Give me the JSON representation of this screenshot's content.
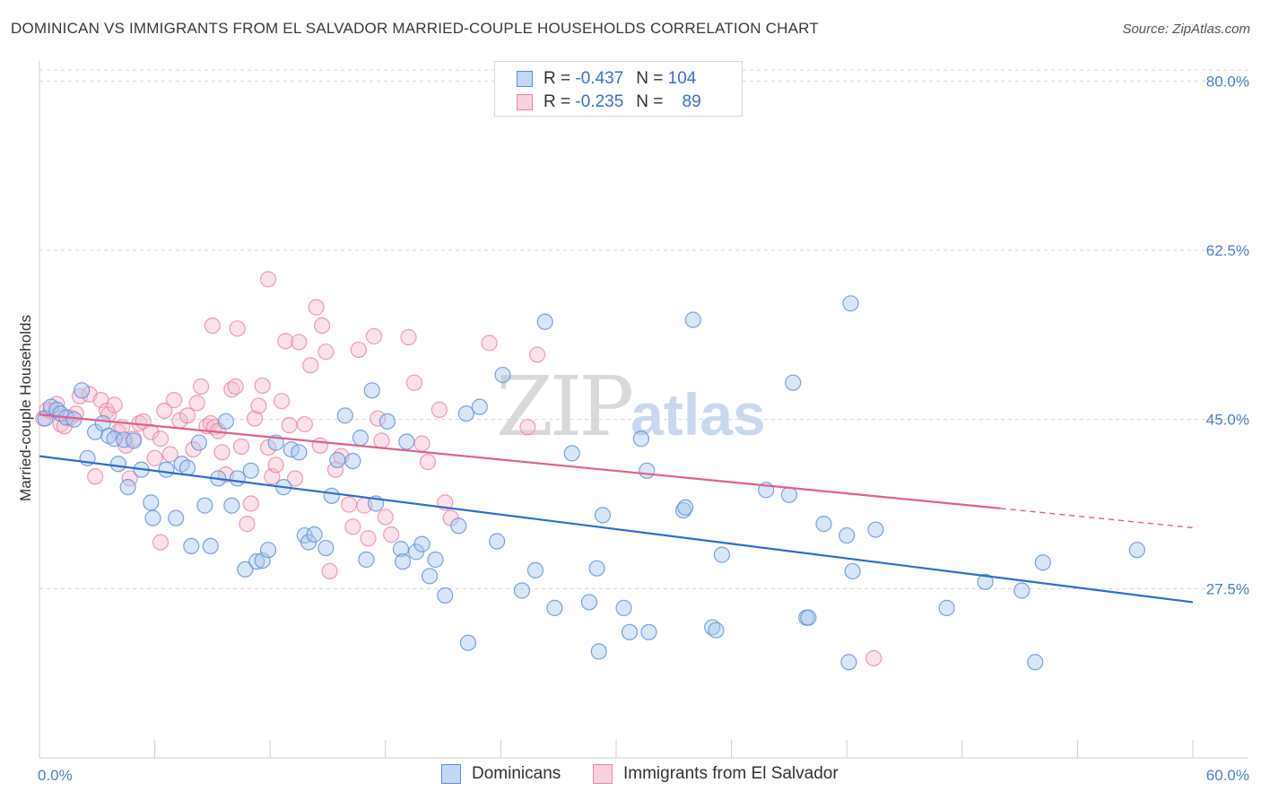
{
  "title": "DOMINICAN VS IMMIGRANTS FROM EL SALVADOR MARRIED-COUPLE HOUSEHOLDS CORRELATION CHART",
  "source": "Source: ZipAtlas.com",
  "watermark": {
    "zip": "ZIP",
    "atlas": "atlas"
  },
  "legend_top": [
    {
      "r_label": "R =",
      "r_value": "-0.437",
      "n_label": "N =",
      "n_value": "104"
    },
    {
      "r_label": "R =",
      "r_value": "-0.235",
      "n_label": "N =",
      "n_value": "89"
    }
  ],
  "legend_bottom": [
    {
      "label": "Dominicans"
    },
    {
      "label": "Immigrants from El Salvador"
    }
  ],
  "colors": {
    "blue_fill": "#aac8f0",
    "blue_stroke": "#5b8fd8",
    "blue_line": "#2a6fd0",
    "pink_fill": "#f6bcd0",
    "pink_stroke": "#e886a6",
    "pink_line": "#e0608c",
    "grid": "#d5d5d5",
    "axis": "#cfcfcf",
    "tick_text": "#4a7fd0"
  },
  "chart_data": {
    "type": "scatter",
    "title": "DOMINICAN VS IMMIGRANTS FROM EL SALVADOR MARRIED-COUPLE HOUSEHOLDS CORRELATION CHART",
    "xlabel": "",
    "ylabel": "Married-couple Households",
    "xlim": [
      0,
      60
    ],
    "ylim": [
      10,
      83
    ],
    "x_tick_labels": [
      {
        "value": 0,
        "label": "0.0%"
      },
      {
        "value": 60,
        "label": "60.0%"
      }
    ],
    "y_tick_labels": [
      {
        "value": 27.5,
        "label": "27.5%"
      },
      {
        "value": 45.0,
        "label": "45.0%"
      },
      {
        "value": 62.5,
        "label": "62.5%"
      },
      {
        "value": 80.0,
        "label": "80.0%"
      }
    ],
    "x_minor_ticks": [
      0,
      6,
      12,
      18,
      24,
      30,
      36,
      42,
      48,
      54,
      60
    ],
    "series": [
      {
        "name": "Dominicans",
        "R": -0.437,
        "N": 104,
        "trend": {
          "x": [
            0,
            60
          ],
          "y": [
            41.2,
            26.1
          ]
        },
        "points": [
          [
            0.3,
            45.1
          ],
          [
            0.6,
            46.3
          ],
          [
            0.9,
            46.0
          ],
          [
            1.1,
            45.6
          ],
          [
            1.4,
            45.2
          ],
          [
            1.8,
            45.0
          ],
          [
            2.2,
            48.0
          ],
          [
            2.5,
            41.0
          ],
          [
            2.9,
            43.7
          ],
          [
            3.3,
            44.6
          ],
          [
            3.6,
            43.3
          ],
          [
            3.9,
            43.0
          ],
          [
            4.1,
            40.4
          ],
          [
            4.4,
            42.9
          ],
          [
            4.6,
            38.0
          ],
          [
            4.9,
            42.8
          ],
          [
            5.3,
            39.8
          ],
          [
            5.8,
            36.4
          ],
          [
            5.9,
            34.8
          ],
          [
            6.6,
            39.8
          ],
          [
            7.1,
            34.8
          ],
          [
            7.4,
            40.4
          ],
          [
            7.7,
            40.0
          ],
          [
            7.9,
            31.9
          ],
          [
            8.3,
            42.6
          ],
          [
            8.6,
            36.1
          ],
          [
            8.9,
            31.9
          ],
          [
            9.3,
            38.9
          ],
          [
            9.7,
            44.8
          ],
          [
            10.0,
            36.1
          ],
          [
            10.3,
            38.9
          ],
          [
            10.7,
            29.5
          ],
          [
            11.0,
            39.7
          ],
          [
            11.3,
            30.3
          ],
          [
            11.6,
            30.4
          ],
          [
            11.9,
            31.5
          ],
          [
            12.3,
            42.6
          ],
          [
            12.7,
            38.0
          ],
          [
            13.1,
            41.9
          ],
          [
            13.5,
            41.6
          ],
          [
            13.8,
            33.0
          ],
          [
            14.0,
            32.3
          ],
          [
            14.3,
            33.1
          ],
          [
            14.9,
            31.7
          ],
          [
            15.2,
            37.1
          ],
          [
            15.5,
            40.8
          ],
          [
            15.9,
            45.4
          ],
          [
            16.3,
            40.7
          ],
          [
            16.7,
            43.1
          ],
          [
            17.3,
            48.0
          ],
          [
            17.5,
            36.3
          ],
          [
            17.0,
            30.5
          ],
          [
            18.1,
            44.8
          ],
          [
            18.8,
            31.6
          ],
          [
            18.9,
            30.3
          ],
          [
            19.1,
            42.7
          ],
          [
            19.6,
            31.3
          ],
          [
            19.9,
            32.1
          ],
          [
            20.3,
            28.8
          ],
          [
            20.6,
            30.5
          ],
          [
            21.1,
            26.8
          ],
          [
            21.8,
            34.0
          ],
          [
            22.2,
            45.6
          ],
          [
            22.9,
            46.3
          ],
          [
            22.3,
            21.9
          ],
          [
            23.8,
            32.4
          ],
          [
            24.1,
            49.6
          ],
          [
            25.1,
            27.3
          ],
          [
            25.8,
            29.4
          ],
          [
            26.3,
            55.1
          ],
          [
            26.8,
            25.5
          ],
          [
            27.7,
            41.5
          ],
          [
            28.6,
            26.1
          ],
          [
            29.0,
            29.6
          ],
          [
            29.1,
            21.0
          ],
          [
            29.3,
            35.1
          ],
          [
            30.4,
            25.5
          ],
          [
            30.7,
            23.0
          ],
          [
            31.3,
            43.0
          ],
          [
            31.6,
            39.7
          ],
          [
            31.7,
            23.0
          ],
          [
            33.5,
            35.6
          ],
          [
            33.6,
            35.9
          ],
          [
            34.0,
            55.3
          ],
          [
            35.0,
            23.5
          ],
          [
            35.2,
            23.2
          ],
          [
            35.5,
            31.0
          ],
          [
            37.8,
            37.7
          ],
          [
            39.0,
            37.2
          ],
          [
            39.2,
            48.8
          ],
          [
            39.9,
            24.5
          ],
          [
            40.8,
            34.2
          ],
          [
            42.0,
            33.0
          ],
          [
            42.1,
            19.9
          ],
          [
            42.2,
            57.0
          ],
          [
            42.3,
            29.3
          ],
          [
            43.5,
            33.6
          ],
          [
            47.2,
            25.5
          ],
          [
            49.2,
            28.2
          ],
          [
            51.1,
            27.3
          ],
          [
            51.8,
            19.9
          ],
          [
            52.2,
            30.2
          ],
          [
            57.1,
            31.5
          ],
          [
            40.0,
            24.5
          ]
        ]
      },
      {
        "name": "Immigrants from El Salvador",
        "R": -0.235,
        "N": 89,
        "trend": {
          "x": [
            0,
            50.0
          ],
          "y": [
            45.5,
            35.8
          ]
        },
        "trend_dashed": {
          "x": [
            50.0,
            60
          ],
          "y": [
            35.8,
            33.8
          ]
        },
        "points": [
          [
            0.2,
            45.1
          ],
          [
            0.4,
            46.0
          ],
          [
            0.6,
            45.9
          ],
          [
            0.9,
            46.6
          ],
          [
            1.1,
            44.5
          ],
          [
            1.3,
            44.3
          ],
          [
            1.6,
            45.2
          ],
          [
            1.9,
            45.6
          ],
          [
            2.1,
            47.4
          ],
          [
            2.6,
            47.6
          ],
          [
            2.9,
            39.1
          ],
          [
            3.2,
            47.0
          ],
          [
            3.5,
            45.9
          ],
          [
            3.6,
            45.5
          ],
          [
            3.9,
            46.5
          ],
          [
            4.1,
            43.7
          ],
          [
            4.3,
            44.2
          ],
          [
            4.5,
            42.3
          ],
          [
            4.7,
            38.9
          ],
          [
            4.9,
            43.0
          ],
          [
            5.2,
            44.6
          ],
          [
            5.4,
            44.8
          ],
          [
            5.8,
            43.7
          ],
          [
            6.0,
            41.0
          ],
          [
            6.3,
            43.0
          ],
          [
            6.5,
            45.9
          ],
          [
            6.8,
            41.4
          ],
          [
            7.0,
            47.0
          ],
          [
            7.3,
            44.9
          ],
          [
            7.7,
            45.4
          ],
          [
            8.0,
            41.9
          ],
          [
            8.2,
            46.7
          ],
          [
            8.4,
            48.4
          ],
          [
            8.7,
            44.3
          ],
          [
            8.9,
            44.6
          ],
          [
            9.1,
            44.2
          ],
          [
            9.3,
            43.8
          ],
          [
            9.5,
            41.6
          ],
          [
            9.7,
            39.3
          ],
          [
            10.0,
            48.1
          ],
          [
            10.2,
            48.4
          ],
          [
            10.5,
            42.2
          ],
          [
            10.8,
            34.2
          ],
          [
            11.0,
            36.3
          ],
          [
            11.2,
            45.1
          ],
          [
            11.4,
            46.4
          ],
          [
            11.6,
            48.5
          ],
          [
            11.9,
            42.1
          ],
          [
            12.1,
            39.1
          ],
          [
            12.3,
            40.3
          ],
          [
            12.6,
            46.9
          ],
          [
            12.8,
            53.1
          ],
          [
            13.0,
            44.4
          ],
          [
            13.3,
            38.9
          ],
          [
            13.5,
            53.0
          ],
          [
            13.8,
            44.5
          ],
          [
            14.1,
            50.6
          ],
          [
            14.4,
            56.6
          ],
          [
            14.6,
            42.3
          ],
          [
            14.9,
            52.0
          ],
          [
            15.1,
            29.3
          ],
          [
            15.4,
            39.8
          ],
          [
            15.7,
            41.2
          ],
          [
            16.1,
            36.2
          ],
          [
            16.3,
            33.9
          ],
          [
            16.6,
            52.2
          ],
          [
            16.9,
            36.1
          ],
          [
            17.1,
            32.7
          ],
          [
            17.4,
            53.6
          ],
          [
            17.6,
            45.1
          ],
          [
            18.0,
            34.9
          ],
          [
            18.3,
            33.1
          ],
          [
            19.2,
            53.5
          ],
          [
            19.5,
            48.8
          ],
          [
            19.9,
            42.5
          ],
          [
            20.2,
            40.6
          ],
          [
            20.8,
            46.0
          ],
          [
            21.1,
            36.4
          ],
          [
            21.4,
            34.8
          ],
          [
            6.3,
            32.3
          ],
          [
            9.0,
            54.7
          ],
          [
            10.3,
            54.4
          ],
          [
            11.9,
            59.5
          ],
          [
            14.7,
            54.7
          ],
          [
            23.4,
            52.9
          ],
          [
            25.9,
            51.7
          ],
          [
            25.4,
            44.2
          ],
          [
            43.4,
            20.3
          ],
          [
            17.8,
            42.8
          ]
        ]
      }
    ]
  }
}
